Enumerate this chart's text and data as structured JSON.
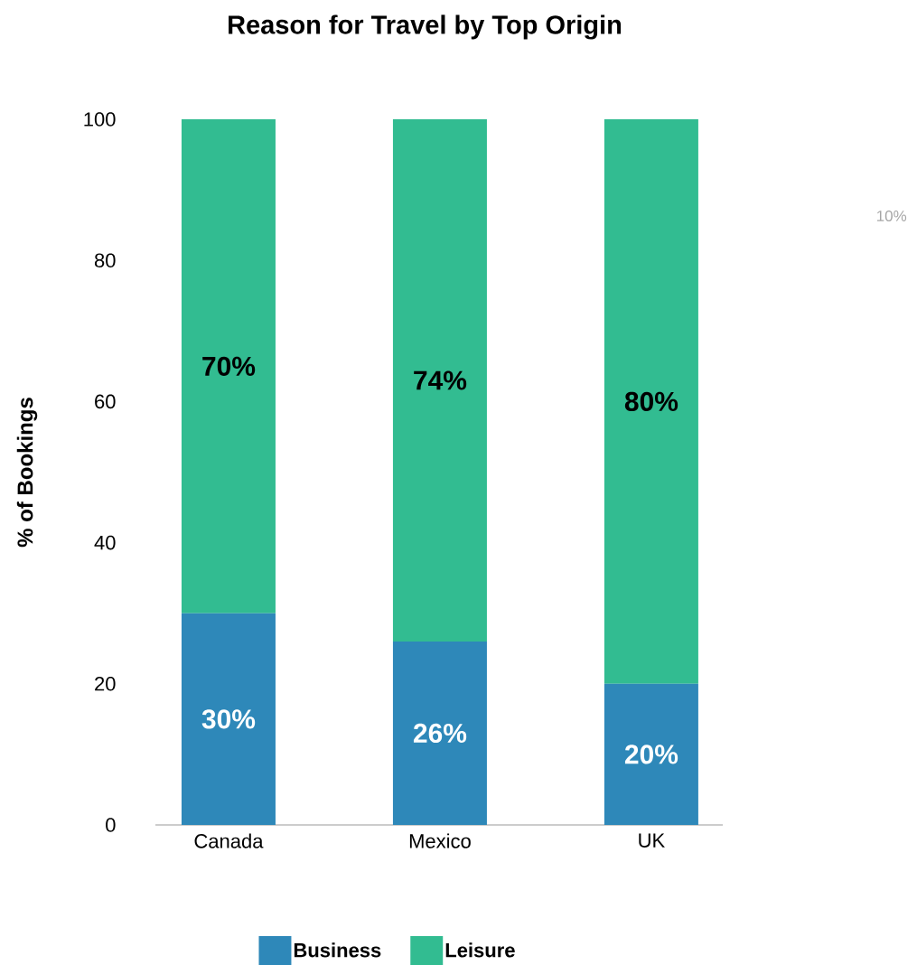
{
  "chart_data": {
    "type": "bar",
    "title": "Reason for Travel by Top Origin",
    "ylabel": "% of Bookings",
    "categories": [
      "Canada",
      "Mexico",
      "UK"
    ],
    "series": [
      {
        "name": "Business",
        "color": "#2e88b9",
        "values": [
          30,
          26,
          20
        ],
        "value_labels": [
          "30%",
          "26%",
          "20%"
        ]
      },
      {
        "name": "Leisure",
        "color": "#32bc91",
        "values": [
          70,
          74,
          80
        ],
        "value_labels": [
          "70%",
          "74%",
          "80%"
        ]
      }
    ],
    "stacked": true,
    "ylim": [
      0,
      100
    ],
    "yticks": [
      0,
      20,
      40,
      60,
      80,
      100
    ],
    "legend": "bottom",
    "annotations": [
      "10%"
    ]
  }
}
